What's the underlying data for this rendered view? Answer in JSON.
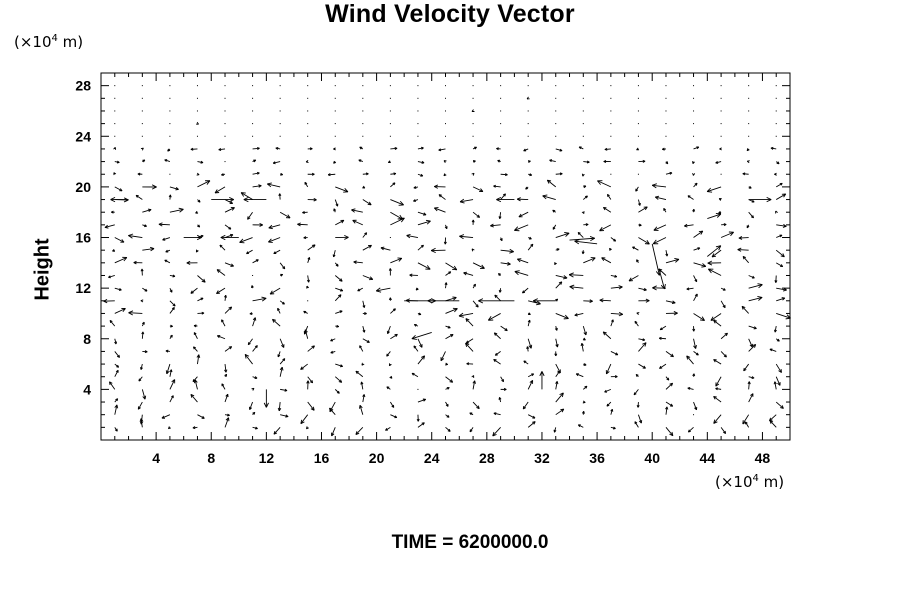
{
  "chart_data": {
    "type": "vector-field",
    "title": "Wind Velocity Vector",
    "ylabel": "Height",
    "x_unit_prefix": "(×10",
    "x_unit_exp": "4",
    "x_unit_suffix": " m)",
    "y_unit_prefix": "(×10",
    "y_unit_exp": "4",
    "y_unit_suffix": " m)",
    "xlim": [
      0,
      50
    ],
    "ylim": [
      0,
      29
    ],
    "x_ticks": [
      4,
      8,
      12,
      16,
      20,
      24,
      28,
      32,
      36,
      40,
      44,
      48
    ],
    "y_ticks": [
      4,
      8,
      12,
      16,
      20,
      24,
      28
    ],
    "grid": false,
    "x_spacing": 2,
    "y_spacing": 1,
    "vectors": [
      {
        "x": 24,
        "y": 8.5,
        "u": -2.2,
        "v": -0.7
      },
      {
        "x": 22,
        "y": 11,
        "u": 3.5,
        "v": 0
      },
      {
        "x": 26,
        "y": 11,
        "u": -3.5,
        "v": 0
      },
      {
        "x": 30,
        "y": 11,
        "u": -4.0,
        "v": 0
      },
      {
        "x": 33,
        "y": 11,
        "u": -2.5,
        "v": 0
      },
      {
        "x": 40,
        "y": 15.5,
        "u": 0.8,
        "v": -3.5
      },
      {
        "x": 40.5,
        "y": 13.5,
        "u": 0.6,
        "v": -2.2
      },
      {
        "x": 36,
        "y": 15.5,
        "u": -2.5,
        "v": 0.3
      },
      {
        "x": 34,
        "y": 15.8,
        "u": 2.8,
        "v": 0.2
      },
      {
        "x": 8,
        "y": 19,
        "u": 2.5,
        "v": 0
      },
      {
        "x": 12,
        "y": 19,
        "u": -2.5,
        "v": 0
      },
      {
        "x": 2,
        "y": 19,
        "u": -2.0,
        "v": 0
      },
      {
        "x": 6,
        "y": 16,
        "u": 2.0,
        "v": 0
      },
      {
        "x": 10,
        "y": 16,
        "u": -2.0,
        "v": 0
      },
      {
        "x": 30,
        "y": 19,
        "u": -2.0,
        "v": 0
      },
      {
        "x": 44,
        "y": 14.5,
        "u": 1.5,
        "v": 1.2
      },
      {
        "x": 44,
        "y": 17.5,
        "u": 1.5,
        "v": 0.5
      },
      {
        "x": 47,
        "y": 19,
        "u": 2.5,
        "v": 0
      },
      {
        "x": 12,
        "y": 4,
        "u": 0,
        "v": -2.0
      },
      {
        "x": 32,
        "y": 4,
        "u": 0,
        "v": 2.0
      }
    ]
  },
  "time_text": "TIME = 6200000.0"
}
